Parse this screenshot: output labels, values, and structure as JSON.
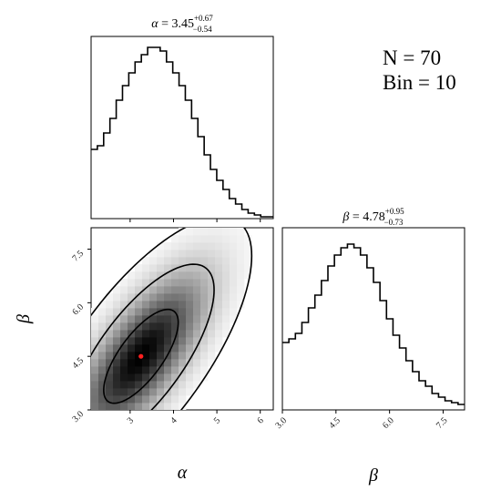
{
  "chart_data": {
    "type": "corner",
    "annotations": {
      "n_text": "N = 70",
      "bin_text": "Bin = 10"
    },
    "params": [
      {
        "symbol": "α",
        "label": "α",
        "median": "3.45",
        "upper": "+0.67",
        "lower": "−0.54"
      },
      {
        "symbol": "β",
        "label": "β",
        "median": "4.78",
        "upper": "+0.95",
        "lower": "−0.73"
      }
    ],
    "alpha_axis": {
      "range": [
        2.1,
        6.3
      ],
      "ticks": [
        3,
        4,
        5,
        6
      ],
      "tick_labels": [
        "3",
        "4",
        "5",
        "6"
      ]
    },
    "beta_axis": {
      "range": [
        3.0,
        8.1
      ],
      "ticks": [
        3.0,
        4.5,
        6.0,
        7.5
      ],
      "tick_labels": [
        "3.0",
        "4.5",
        "6.0",
        "7.5"
      ]
    },
    "hist_alpha": {
      "values": [
        0.38,
        0.4,
        0.47,
        0.55,
        0.65,
        0.73,
        0.8,
        0.86,
        0.9,
        0.94,
        0.94,
        0.92,
        0.86,
        0.8,
        0.73,
        0.65,
        0.55,
        0.45,
        0.35,
        0.27,
        0.21,
        0.16,
        0.11,
        0.08,
        0.05,
        0.03,
        0.02,
        0.01,
        0.01
      ]
    },
    "hist_beta": {
      "values": [
        0.37,
        0.39,
        0.42,
        0.48,
        0.56,
        0.63,
        0.71,
        0.79,
        0.85,
        0.89,
        0.91,
        0.89,
        0.85,
        0.78,
        0.7,
        0.6,
        0.5,
        0.41,
        0.34,
        0.27,
        0.21,
        0.16,
        0.13,
        0.09,
        0.07,
        0.05,
        0.04,
        0.03
      ]
    },
    "joint": {
      "peak": {
        "alpha": 3.25,
        "beta": 4.5
      },
      "sigma_alpha": 0.85,
      "sigma_beta": 1.3,
      "correlation": 0.72,
      "contour_levels": [
        0.4,
        0.86,
        0.989
      ],
      "point_color": "#ff2020"
    }
  }
}
